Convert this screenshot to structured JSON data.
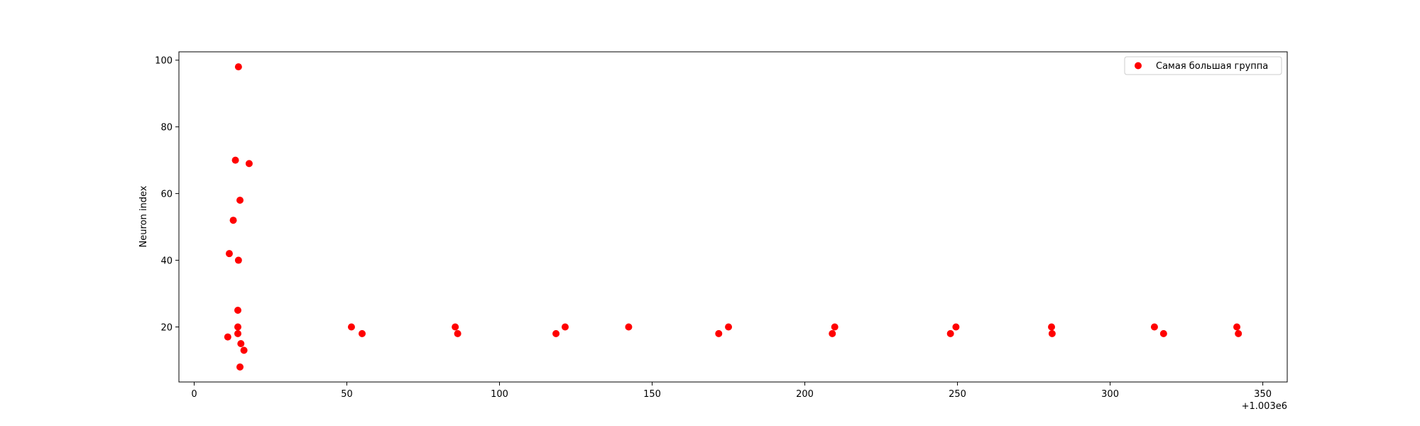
{
  "chart_data": {
    "type": "scatter",
    "title": "",
    "xlabel": "",
    "ylabel": "Neuron index",
    "x_offset_label": "+1.003e6",
    "x_offset": 1003000,
    "xlim": [
      -5,
      358
    ],
    "ylim": [
      3.5,
      102.5
    ],
    "x_ticks": [
      0,
      50,
      100,
      150,
      200,
      250,
      300,
      350
    ],
    "y_ticks": [
      20,
      40,
      60,
      80,
      100
    ],
    "grid": false,
    "legend": {
      "placement": "top-right"
    },
    "series": [
      {
        "name": "Самая большая группа",
        "color": "#ff0000",
        "x": [
          1003014.5,
          1003013.5,
          1003018,
          1003015,
          1003012.8,
          1003011.5,
          1003014.5,
          1003014.3,
          1003014.3,
          1003014.3,
          1003011,
          1003015.3,
          1003016.3,
          1003015,
          1003051.5,
          1003055,
          1003085.5,
          1003086.3,
          1003118.5,
          1003121.5,
          1003142.3,
          1003171.8,
          1003175,
          1003209,
          1003209.8,
          1003247.7,
          1003249.5,
          1003280.8,
          1003281,
          1003314.5,
          1003317.5,
          1003341.5,
          1003342
        ],
        "y": [
          98,
          70,
          69,
          58,
          52,
          42,
          40,
          25,
          20,
          18,
          17,
          15,
          13,
          8,
          20,
          18,
          20,
          18,
          18,
          20,
          20,
          18,
          20,
          18,
          20,
          18,
          20,
          20,
          18,
          20,
          18,
          20,
          18
        ]
      }
    ]
  }
}
